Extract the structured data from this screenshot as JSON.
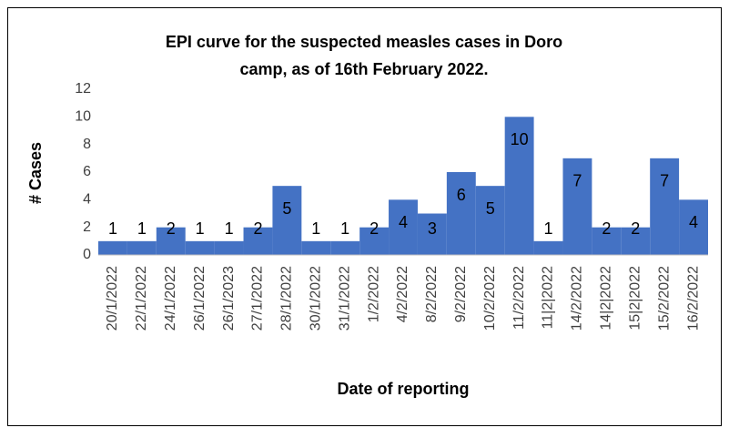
{
  "chart_data": {
    "type": "bar",
    "title": [
      "EPI curve for the suspected measles cases in Doro",
      "camp, as of 16th February 2022."
    ],
    "y_label": "# Cases",
    "x_label": "Date of reporting",
    "categories": [
      "20/1/2022",
      "22/1/2022",
      "24/1/2022",
      "26/1/2022",
      "26/1/2023",
      "27/1/2022",
      "28/1/2022",
      "30/1/2022",
      "31/1/2022",
      "1/2/2022",
      "4/2/2022",
      "8/2/2022",
      "9/2/2022",
      "10/2/2022",
      "11/2/2022",
      "11|2|2022",
      "14/2/2022",
      "14|2|2022",
      "15|2|2022",
      "15/2/2022",
      "16/2/2022"
    ],
    "values": [
      1,
      1,
      2,
      1,
      1,
      2,
      5,
      1,
      1,
      2,
      4,
      3,
      6,
      5,
      10,
      1,
      7,
      2,
      2,
      7,
      4
    ],
    "color": "#4472c4",
    "ylim": [
      0,
      12
    ],
    "yticks": [
      0,
      2,
      4,
      6,
      8,
      10,
      12
    ],
    "grid": false
  }
}
